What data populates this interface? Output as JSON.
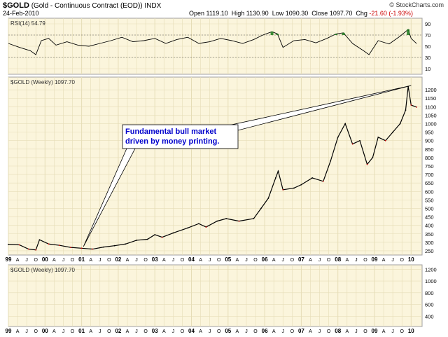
{
  "header": {
    "symbol": "$GOLD",
    "description": "(Gold - Continuous Contract (EOD))",
    "exchange": "INDX",
    "date": "24-Feb-2010",
    "brand": "© StockCharts.com",
    "open_label": "Open",
    "open": "1119.10",
    "high_label": "High",
    "high": "1130.90",
    "low_label": "Low",
    "low": "1090.30",
    "close_label": "Close",
    "close": "1097.70",
    "chg_label": "Chg",
    "chg": "-21.60 (-1.93%)"
  },
  "colors": {
    "panel_bg": "#fbf5dc",
    "grid": "#e6ddb7",
    "border": "#a0a0a0",
    "price_line": "#000000",
    "down_bar": "#cc0000",
    "rsi_line": "#000000",
    "rsi_fill": "#1a7a1a",
    "annotation_text": "#0000cc"
  },
  "chart_data": [
    {
      "type": "line",
      "panel": "rsi",
      "label": "RSI(14) 54.79",
      "ylim": [
        0,
        100
      ],
      "yticks": [
        10,
        30,
        50,
        70,
        90
      ],
      "reference_lines": [
        30,
        70
      ],
      "x": [
        1999.0,
        1999.3,
        1999.6,
        1999.75,
        1999.9,
        2000.1,
        2000.3,
        2000.6,
        2000.9,
        2001.2,
        2001.5,
        2001.8,
        2002.1,
        2002.4,
        2002.7,
        2003.0,
        2003.3,
        2003.6,
        2003.9,
        2004.2,
        2004.5,
        2004.8,
        2005.1,
        2005.4,
        2005.7,
        2005.95,
        2006.2,
        2006.35,
        2006.5,
        2006.8,
        2007.1,
        2007.4,
        2007.7,
        2007.95,
        2008.15,
        2008.4,
        2008.7,
        2008.85,
        2009.1,
        2009.4,
        2009.7,
        2009.92,
        2010.0,
        2010.15
      ],
      "values": [
        55,
        48,
        42,
        35,
        60,
        64,
        52,
        58,
        52,
        50,
        55,
        60,
        66,
        58,
        60,
        64,
        55,
        62,
        66,
        55,
        58,
        64,
        60,
        55,
        62,
        70,
        76,
        72,
        48,
        60,
        62,
        56,
        64,
        72,
        74,
        55,
        42,
        35,
        60,
        54,
        68,
        80,
        64,
        54.79
      ]
    },
    {
      "type": "line",
      "panel": "price",
      "label": "$GOLD (Weekly) 1097.70",
      "ylim": [
        225,
        1275
      ],
      "yticks": [
        250,
        300,
        350,
        400,
        450,
        500,
        550,
        600,
        650,
        700,
        750,
        800,
        850,
        900,
        950,
        1000,
        1050,
        1100,
        1150,
        1200
      ],
      "x": [
        1999.0,
        1999.3,
        1999.55,
        1999.75,
        1999.85,
        2000.1,
        2000.4,
        2000.7,
        2001.0,
        2001.3,
        2001.6,
        2001.9,
        2002.2,
        2002.5,
        2002.8,
        2003.0,
        2003.2,
        2003.5,
        2003.9,
        2004.2,
        2004.4,
        2004.7,
        2004.95,
        2005.3,
        2005.7,
        2005.9,
        2006.1,
        2006.3,
        2006.37,
        2006.5,
        2006.8,
        2007.0,
        2007.3,
        2007.6,
        2007.8,
        2008.0,
        2008.2,
        2008.4,
        2008.6,
        2008.8,
        2008.95,
        2009.1,
        2009.3,
        2009.5,
        2009.7,
        2009.85,
        2009.92,
        2010.0,
        2010.15
      ],
      "values": [
        288,
        285,
        260,
        255,
        315,
        290,
        282,
        270,
        265,
        260,
        272,
        280,
        290,
        312,
        318,
        345,
        330,
        355,
        385,
        410,
        390,
        425,
        440,
        425,
        440,
        500,
        560,
        680,
        720,
        610,
        620,
        640,
        680,
        660,
        780,
        920,
        1000,
        880,
        900,
        760,
        800,
        920,
        900,
        950,
        1000,
        1080,
        1220,
        1110,
        1097.7
      ]
    },
    {
      "type": "line",
      "panel": "lower",
      "label": "$GOLD (Weekly) 1097.70",
      "ylim": [
        225,
        1275
      ],
      "yticks": [
        400,
        600,
        800,
        1000,
        1200
      ],
      "x": [],
      "values": []
    }
  ],
  "x_axis": {
    "xlim": [
      1999.0,
      2010.3
    ],
    "ticks": [
      {
        "label": "99",
        "x": 1999.0,
        "major": true
      },
      {
        "label": "A",
        "x": 1999.25
      },
      {
        "label": "J",
        "x": 1999.5
      },
      {
        "label": "O",
        "x": 1999.75
      },
      {
        "label": "00",
        "x": 2000.0,
        "major": true
      },
      {
        "label": "A",
        "x": 2000.25
      },
      {
        "label": "J",
        "x": 2000.5
      },
      {
        "label": "O",
        "x": 2000.75
      },
      {
        "label": "01",
        "x": 2001.0,
        "major": true
      },
      {
        "label": "A",
        "x": 2001.25
      },
      {
        "label": "J",
        "x": 2001.5
      },
      {
        "label": "O",
        "x": 2001.75
      },
      {
        "label": "02",
        "x": 2002.0,
        "major": true
      },
      {
        "label": "A",
        "x": 2002.25
      },
      {
        "label": "J",
        "x": 2002.5
      },
      {
        "label": "O",
        "x": 2002.75
      },
      {
        "label": "03",
        "x": 2003.0,
        "major": true
      },
      {
        "label": "A",
        "x": 2003.25
      },
      {
        "label": "J",
        "x": 2003.5
      },
      {
        "label": "O",
        "x": 2003.75
      },
      {
        "label": "04",
        "x": 2004.0,
        "major": true
      },
      {
        "label": "A",
        "x": 2004.25
      },
      {
        "label": "J",
        "x": 2004.5
      },
      {
        "label": "O",
        "x": 2004.75
      },
      {
        "label": "05",
        "x": 2005.0,
        "major": true
      },
      {
        "label": "A",
        "x": 2005.25
      },
      {
        "label": "J",
        "x": 2005.5
      },
      {
        "label": "O",
        "x": 2005.75
      },
      {
        "label": "06",
        "x": 2006.0,
        "major": true
      },
      {
        "label": "A",
        "x": 2006.25
      },
      {
        "label": "J",
        "x": 2006.5
      },
      {
        "label": "O",
        "x": 2006.75
      },
      {
        "label": "07",
        "x": 2007.0,
        "major": true
      },
      {
        "label": "A",
        "x": 2007.25
      },
      {
        "label": "J",
        "x": 2007.5
      },
      {
        "label": "O",
        "x": 2007.75
      },
      {
        "label": "08",
        "x": 2008.0,
        "major": true
      },
      {
        "label": "A",
        "x": 2008.25
      },
      {
        "label": "J",
        "x": 2008.5
      },
      {
        "label": "O",
        "x": 2008.75
      },
      {
        "label": "09",
        "x": 2009.0,
        "major": true
      },
      {
        "label": "A",
        "x": 2009.25
      },
      {
        "label": "J",
        "x": 2009.5
      },
      {
        "label": "O",
        "x": 2009.75
      },
      {
        "label": "10",
        "x": 2010.0,
        "major": true
      }
    ]
  },
  "annotation": {
    "lines": [
      "Fundamental bull market",
      "driven by money printing."
    ],
    "arrow_targets": [
      {
        "x": 2001.05,
        "y": 275
      },
      {
        "x": 2010.0,
        "y": 1225
      }
    ]
  }
}
